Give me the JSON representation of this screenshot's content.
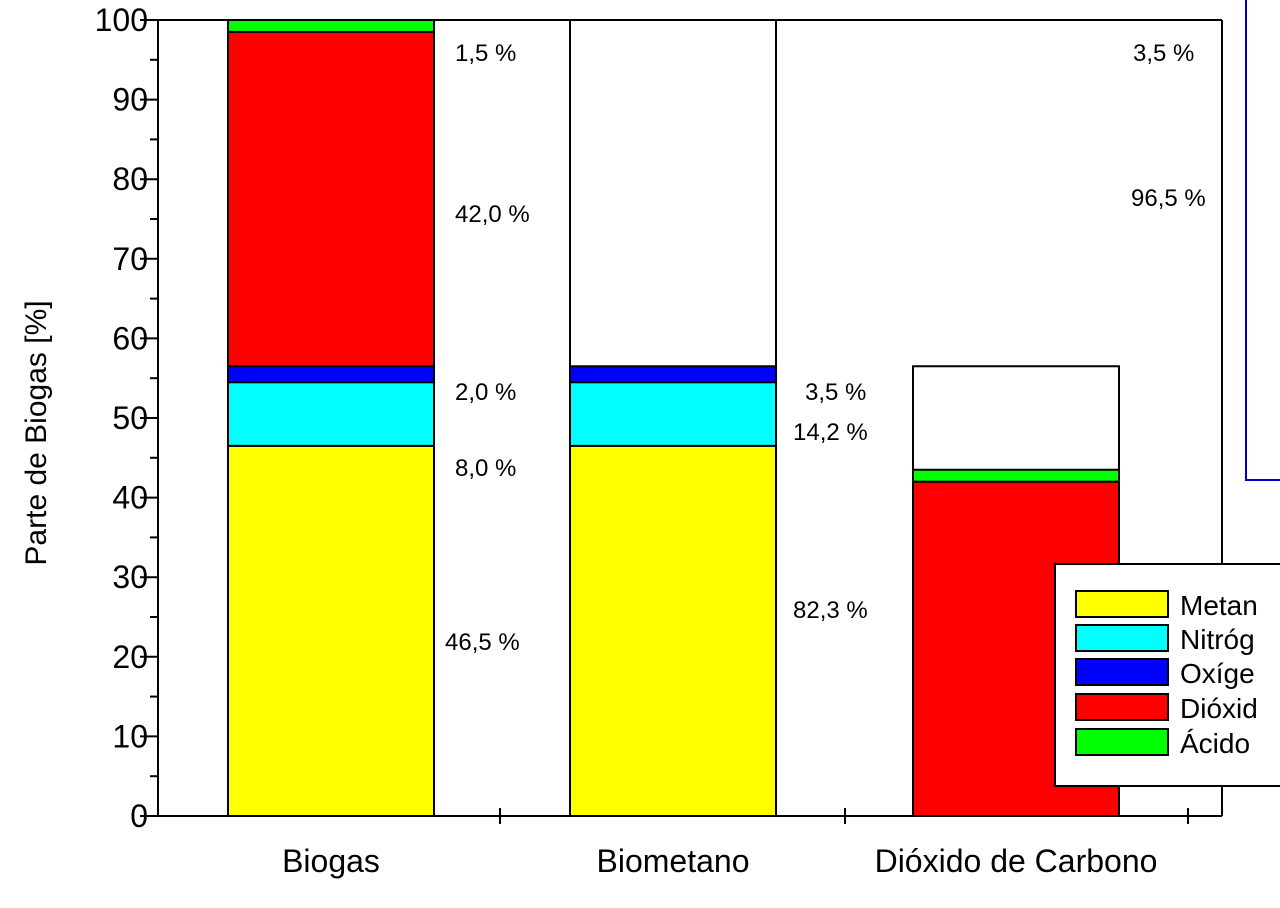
{
  "chart_data": {
    "type": "bar",
    "stacked": true,
    "ylabel": "Parte de Biogas [%]",
    "xlabel": "",
    "ylim": [
      0,
      100
    ],
    "yticks": [
      "0",
      "10",
      "20",
      "30",
      "40",
      "50",
      "60",
      "70",
      "80",
      "90",
      "100"
    ],
    "categories": [
      "Biogas",
      "Biometano",
      "Dióxido de Carbono"
    ],
    "series": [
      {
        "name": "Metan",
        "color": "#ffff00",
        "values": [
          46.5,
          46.5,
          0
        ]
      },
      {
        "name": "Nitróg",
        "color": "#00ffff",
        "values": [
          8.0,
          8.0,
          0
        ]
      },
      {
        "name": "Oxíge",
        "color": "#0000ff",
        "values": [
          2.0,
          2.0,
          0
        ]
      },
      {
        "name": "Dióxid",
        "color": "#ff0000",
        "values": [
          42.0,
          0,
          42.0
        ]
      },
      {
        "name": "Ácido",
        "color": "#00ff00",
        "values": [
          1.5,
          0,
          1.5
        ]
      }
    ],
    "background_bars": [
      {
        "category": "Biometano",
        "top": 100
      },
      {
        "category": "Dióxido de Carbono",
        "top": 56.5
      }
    ],
    "data_labels": [
      {
        "category": "Biogas",
        "value": 1.5,
        "text": "1,5 %"
      },
      {
        "category": "Biogas",
        "value": 42.0,
        "text": "42,0 %"
      },
      {
        "category": "Biogas",
        "value": 2.0,
        "text": "2,0 %"
      },
      {
        "category": "Biogas",
        "value": 8.0,
        "text": "8,0 %"
      },
      {
        "category": "Biogas",
        "value": 46.5,
        "text": "46,5 %"
      },
      {
        "category": "Biometano",
        "value": 3.5,
        "text": "3,5 %"
      },
      {
        "category": "Biometano",
        "value": 14.2,
        "text": "14,2 %"
      },
      {
        "category": "Biometano",
        "value": 82.3,
        "text": "82,3 %"
      },
      {
        "category": "Dióxido de Carbono",
        "value": 3.5,
        "text": "3,5 %"
      },
      {
        "category": "Dióxido de Carbono",
        "value": 96.5,
        "text": "96,5 %"
      }
    ],
    "legend": {
      "placement": "bottom-right",
      "entries": [
        "Metan",
        "Nitróg",
        "Oxíge",
        "Dióxid",
        "Ácido"
      ]
    },
    "inset_box_color": "#0000cc",
    "grid": false
  }
}
